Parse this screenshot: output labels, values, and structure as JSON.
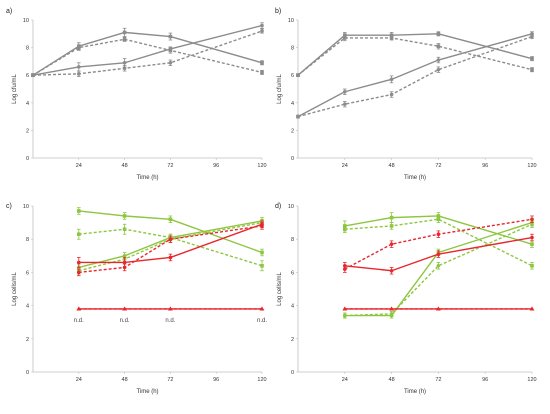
{
  "chart_data": [
    {
      "panel": "a)",
      "type": "line",
      "xlabel": "Time (h)",
      "ylabel": "Log cfu/mL",
      "xlim": [
        0,
        120
      ],
      "ylim": [
        0,
        10
      ],
      "xticks": [
        24,
        48,
        72,
        96,
        120
      ],
      "yticks": [
        0,
        2,
        4,
        6,
        8,
        10
      ],
      "grid": false,
      "series": [
        {
          "color": "#8c8c8c",
          "dash": "solid",
          "marker": "square",
          "x": [
            0,
            24,
            48,
            72,
            120
          ],
          "y": [
            6.0,
            8.1,
            9.1,
            8.8,
            6.9
          ],
          "err": [
            0.1,
            0.25,
            0.3,
            0.25,
            0.15
          ]
        },
        {
          "color": "#8c8c8c",
          "dash": "dashed",
          "marker": "square",
          "x": [
            0,
            24,
            48,
            72,
            120
          ],
          "y": [
            6.0,
            8.0,
            8.6,
            7.8,
            6.2
          ],
          "err": [
            0.1,
            0.2,
            0.15,
            0.2,
            0.15
          ]
        },
        {
          "color": "#8c8c8c",
          "dash": "solid",
          "marker": "circle",
          "x": [
            0,
            24,
            48,
            72,
            120
          ],
          "y": [
            6.0,
            6.6,
            6.9,
            7.9,
            9.6
          ],
          "err": [
            0.1,
            0.3,
            0.3,
            0.15,
            0.2
          ]
        },
        {
          "color": "#8c8c8c",
          "dash": "dashed",
          "marker": "circle",
          "x": [
            0,
            24,
            48,
            72,
            120
          ],
          "y": [
            6.0,
            6.1,
            6.5,
            6.9,
            9.2
          ],
          "err": [
            0.1,
            0.2,
            0.2,
            0.2,
            0.15
          ]
        }
      ]
    },
    {
      "panel": "b)",
      "type": "line",
      "xlabel": "Time (h)",
      "ylabel": "Log cfu/mL",
      "xlim": [
        0,
        120
      ],
      "ylim": [
        0,
        10
      ],
      "xticks": [
        24,
        48,
        72,
        96,
        120
      ],
      "yticks": [
        0,
        2,
        4,
        6,
        8,
        10
      ],
      "grid": false,
      "series": [
        {
          "color": "#8c8c8c",
          "dash": "solid",
          "marker": "square",
          "x": [
            0,
            24,
            48,
            72,
            120
          ],
          "y": [
            6.0,
            8.9,
            8.9,
            9.0,
            7.2
          ],
          "err": [
            0.1,
            0.2,
            0.2,
            0.15,
            0.15
          ]
        },
        {
          "color": "#8c8c8c",
          "dash": "dashed",
          "marker": "square",
          "x": [
            0,
            24,
            48,
            72,
            120
          ],
          "y": [
            6.0,
            8.7,
            8.7,
            8.1,
            6.4
          ],
          "err": [
            0.1,
            0.2,
            0.15,
            0.2,
            0.15
          ]
        },
        {
          "color": "#8c8c8c",
          "dash": "solid",
          "marker": "circle",
          "x": [
            0,
            24,
            48,
            72,
            120
          ],
          "y": [
            3.0,
            4.8,
            5.7,
            7.1,
            9.0
          ],
          "err": [
            0.1,
            0.2,
            0.25,
            0.2,
            0.15
          ]
        },
        {
          "color": "#8c8c8c",
          "dash": "dashed",
          "marker": "circle",
          "x": [
            0,
            24,
            48,
            72,
            120
          ],
          "y": [
            3.0,
            3.9,
            4.6,
            6.4,
            8.8
          ],
          "err": [
            0.1,
            0.2,
            0.2,
            0.2,
            0.15
          ]
        }
      ]
    },
    {
      "panel": "c)",
      "type": "line",
      "xlabel": "Time (h)",
      "ylabel": "Log cells/mL",
      "xlim": [
        0,
        120
      ],
      "ylim": [
        0,
        10
      ],
      "xticks": [
        24,
        48,
        72,
        96,
        120
      ],
      "yticks": [
        0,
        2,
        4,
        6,
        8,
        10
      ],
      "grid": false,
      "annotations": [
        {
          "text": "n.d.",
          "x": 24,
          "y": 3.0
        },
        {
          "text": "n.d.",
          "x": 48,
          "y": 3.0
        },
        {
          "text": "n.d.",
          "x": 72,
          "y": 3.0
        },
        {
          "text": "n.d.",
          "x": 120,
          "y": 3.0
        }
      ],
      "series": [
        {
          "color": "#8dc63f",
          "dash": "solid",
          "marker": "square",
          "x": [
            24,
            48,
            72,
            120
          ],
          "y": [
            9.7,
            9.4,
            9.2,
            7.2
          ],
          "err": [
            0.2,
            0.2,
            0.2,
            0.2
          ]
        },
        {
          "color": "#8dc63f",
          "dash": "dashed",
          "marker": "square",
          "x": [
            24,
            48,
            72,
            120
          ],
          "y": [
            8.3,
            8.6,
            8.1,
            6.4
          ],
          "err": [
            0.3,
            0.3,
            0.2,
            0.3
          ]
        },
        {
          "color": "#8dc63f",
          "dash": "solid",
          "marker": "circle",
          "x": [
            24,
            48,
            72,
            120
          ],
          "y": [
            6.3,
            7.0,
            8.1,
            9.1
          ],
          "err": [
            0.2,
            0.2,
            0.2,
            0.2
          ]
        },
        {
          "color": "#8dc63f",
          "dash": "dashed",
          "marker": "circle",
          "x": [
            24,
            48,
            72,
            120
          ],
          "y": [
            6.1,
            6.8,
            8.0,
            9.0
          ],
          "err": [
            0.2,
            0.2,
            0.2,
            0.2
          ]
        },
        {
          "color": "#e8262c",
          "dash": "solid",
          "marker": "circle",
          "x": [
            24,
            48,
            72,
            120
          ],
          "y": [
            6.6,
            6.6,
            6.9,
            8.9
          ],
          "err": [
            0.3,
            0.3,
            0.2,
            0.2
          ]
        },
        {
          "color": "#e8262c",
          "dash": "dashed",
          "marker": "circle",
          "x": [
            24,
            48,
            72,
            120
          ],
          "y": [
            6.0,
            6.3,
            8.0,
            8.8
          ],
          "err": [
            0.2,
            0.2,
            0.2,
            0.2
          ]
        },
        {
          "color": "#e8262c",
          "dash": "solid",
          "marker": "triangle",
          "x": [
            24,
            48,
            72,
            120
          ],
          "y": [
            3.8,
            3.8,
            3.8,
            3.8
          ],
          "err": [
            0,
            0,
            0,
            0
          ]
        },
        {
          "color": "#e8262c",
          "dash": "dashed",
          "marker": "triangle",
          "x": [
            24,
            48,
            72,
            120
          ],
          "y": [
            3.8,
            3.8,
            3.8,
            3.8
          ],
          "err": [
            0,
            0,
            0,
            0
          ]
        }
      ]
    },
    {
      "panel": "d)",
      "type": "line",
      "xlabel": "Time (h)",
      "ylabel": "Log cells/mL",
      "xlim": [
        0,
        120
      ],
      "ylim": [
        0,
        10
      ],
      "xticks": [
        24,
        48,
        72,
        96,
        120
      ],
      "yticks": [
        0,
        2,
        4,
        6,
        8,
        10
      ],
      "grid": false,
      "series": [
        {
          "color": "#8dc63f",
          "dash": "solid",
          "marker": "square",
          "x": [
            24,
            48,
            72,
            120
          ],
          "y": [
            8.8,
            9.3,
            9.4,
            7.7
          ],
          "err": [
            0.3,
            0.3,
            0.2,
            0.2
          ]
        },
        {
          "color": "#8dc63f",
          "dash": "dashed",
          "marker": "square",
          "x": [
            24,
            48,
            72,
            120
          ],
          "y": [
            8.6,
            8.8,
            9.2,
            6.4
          ],
          "err": [
            0.2,
            0.2,
            0.2,
            0.2
          ]
        },
        {
          "color": "#8dc63f",
          "dash": "solid",
          "marker": "circle",
          "x": [
            24,
            48,
            72,
            120
          ],
          "y": [
            3.4,
            3.4,
            7.2,
            9.0
          ],
          "err": [
            0.15,
            0.15,
            0.2,
            0.2
          ]
        },
        {
          "color": "#8dc63f",
          "dash": "dashed",
          "marker": "circle",
          "x": [
            24,
            48,
            72,
            120
          ],
          "y": [
            3.4,
            3.5,
            6.4,
            8.9
          ],
          "err": [
            0.15,
            0.15,
            0.2,
            0.2
          ]
        },
        {
          "color": "#e8262c",
          "dash": "solid",
          "marker": "circle",
          "x": [
            24,
            48,
            72,
            120
          ],
          "y": [
            6.4,
            6.1,
            7.1,
            8.1
          ],
          "err": [
            0.2,
            0.2,
            0.2,
            0.2
          ]
        },
        {
          "color": "#e8262c",
          "dash": "dashed",
          "marker": "circle",
          "x": [
            24,
            48,
            72,
            120
          ],
          "y": [
            6.2,
            7.7,
            8.3,
            9.2
          ],
          "err": [
            0.2,
            0.2,
            0.2,
            0.2
          ]
        },
        {
          "color": "#e8262c",
          "dash": "solid",
          "marker": "triangle",
          "x": [
            24,
            48,
            72,
            120
          ],
          "y": [
            3.8,
            3.8,
            3.8,
            3.8
          ],
          "err": [
            0,
            0,
            0,
            0
          ]
        },
        {
          "color": "#e8262c",
          "dash": "dashed",
          "marker": "triangle",
          "x": [
            24,
            48,
            72,
            120
          ],
          "y": [
            3.8,
            3.8,
            3.8,
            3.8
          ],
          "err": [
            0,
            0,
            0,
            0
          ]
        }
      ]
    }
  ]
}
